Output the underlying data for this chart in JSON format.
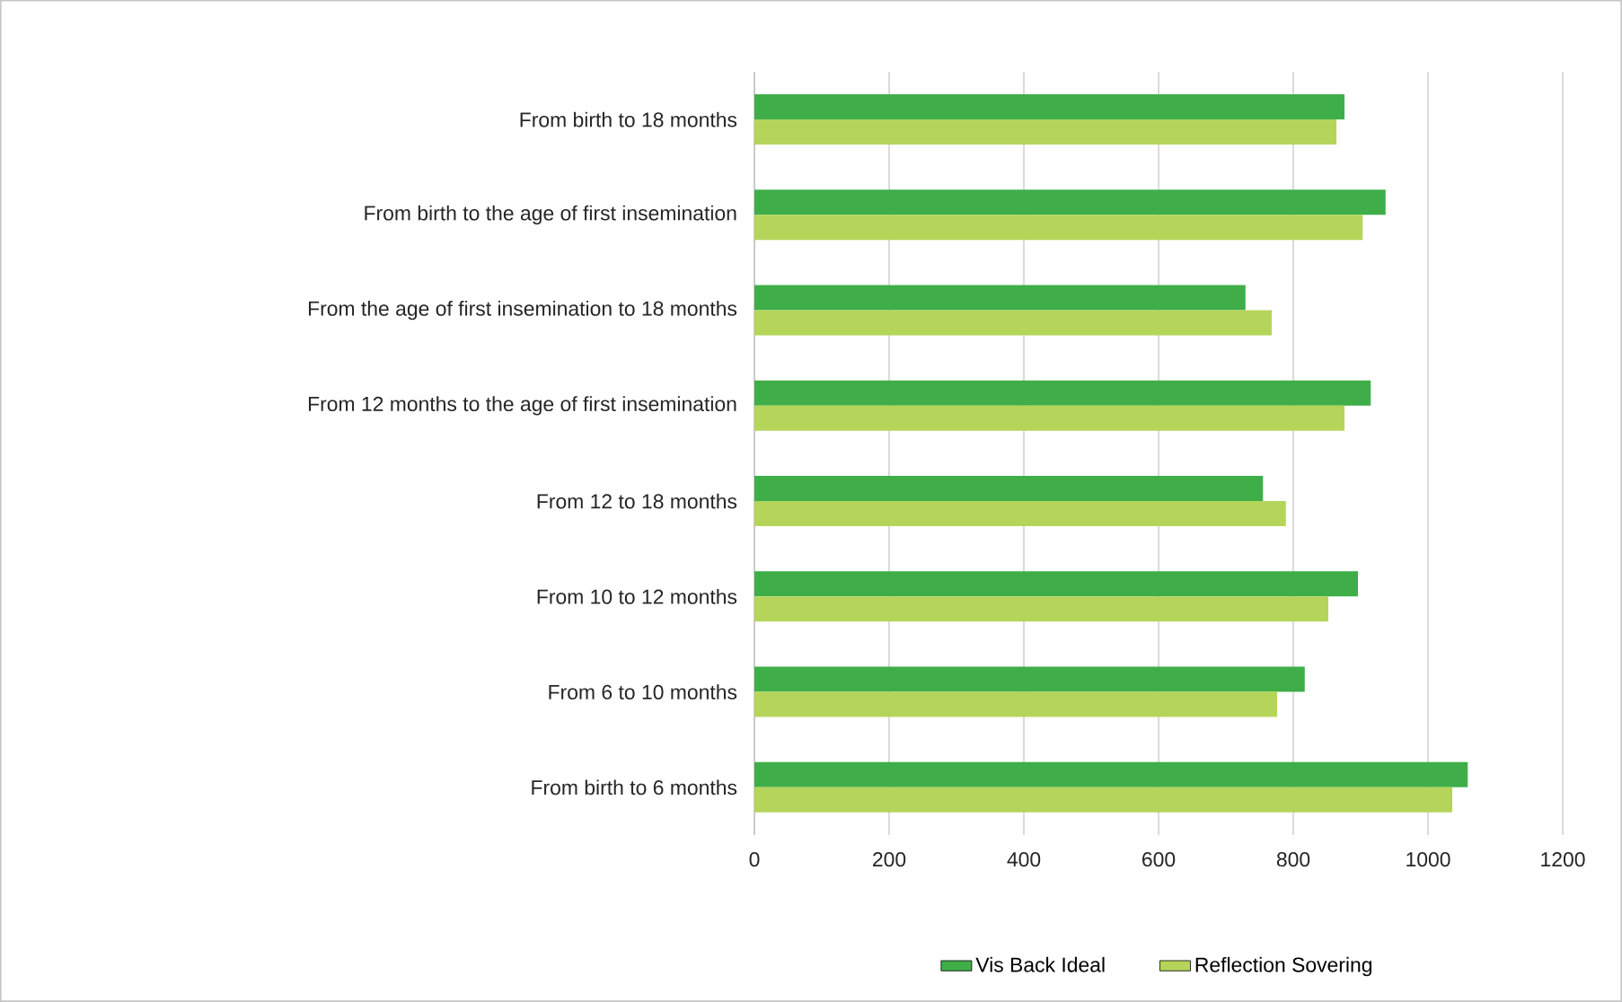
{
  "chart_data": {
    "type": "bar",
    "orientation": "horizontal",
    "categories": [
      "From birth to 18 months",
      "From birth to the age of first insemination",
      "From the age of first insemination to 18 months",
      "From 12 months to the age of first insemination",
      "From 12 to 18 months",
      "From 10 to 12 months",
      "From 6 to 10 months",
      "From birth to 6 months"
    ],
    "series": [
      {
        "name": "Vis Back Ideal",
        "color": "#3fae49",
        "values": [
          876,
          937,
          729,
          915,
          755,
          896,
          817,
          1059
        ]
      },
      {
        "name": "Reflection Sovering",
        "color": "#b5d55a",
        "values": [
          864,
          903,
          768,
          876,
          789,
          852,
          776,
          1036
        ]
      }
    ],
    "xlim": [
      0,
      1200
    ],
    "xticks": [
      0,
      200,
      400,
      600,
      800,
      1000,
      1200
    ],
    "grid": "x",
    "legend": "bottom"
  }
}
